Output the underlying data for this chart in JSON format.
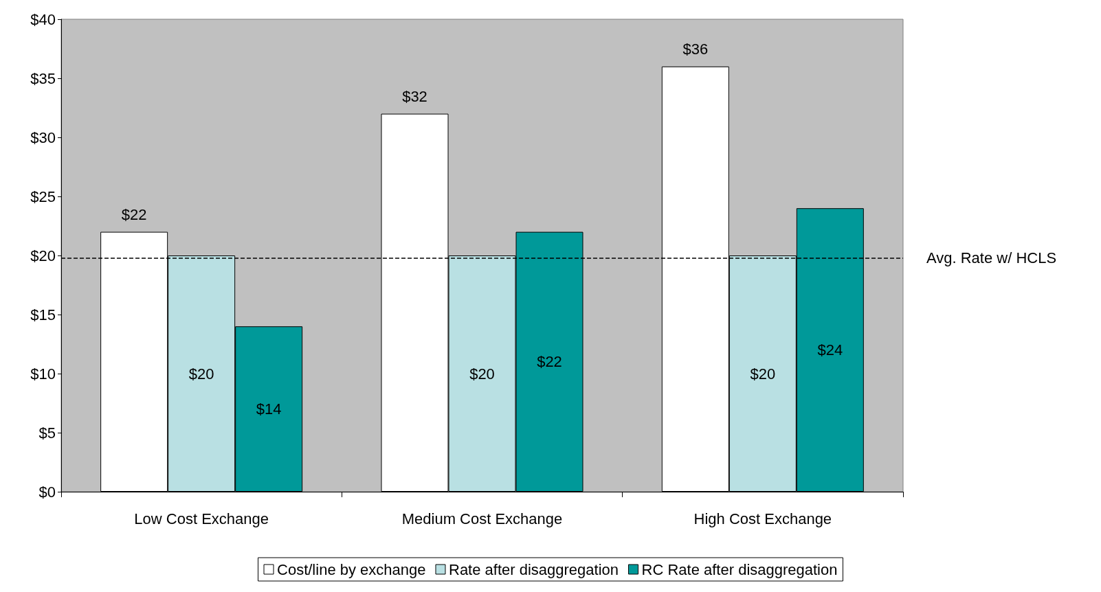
{
  "chart_data": {
    "type": "bar",
    "categories": [
      "Low Cost Exchange",
      "Medium Cost Exchange",
      "High Cost Exchange"
    ],
    "series": [
      {
        "name": "Cost/line by exchange",
        "color": "#ffffff",
        "values": [
          22,
          32,
          36
        ],
        "value_labels": [
          "$22",
          "$32",
          "$36"
        ]
      },
      {
        "name": "Rate after disaggregation",
        "color": "#b9e0e3",
        "values": [
          20,
          20,
          20
        ],
        "value_labels": [
          "$20",
          "$20",
          "$20"
        ]
      },
      {
        "name": "RC Rate after disaggregation",
        "color": "#009999",
        "values": [
          14,
          22,
          24
        ],
        "value_labels": [
          "$14",
          "$22",
          "$24"
        ]
      }
    ],
    "ylim": [
      0,
      40
    ],
    "yticks": [
      {
        "value": 0,
        "label": "$0"
      },
      {
        "value": 5,
        "label": "$5"
      },
      {
        "value": 10,
        "label": "$10"
      },
      {
        "value": 15,
        "label": "$15"
      },
      {
        "value": 20,
        "label": "$20"
      },
      {
        "value": 25,
        "label": "$25"
      },
      {
        "value": 30,
        "label": "$30"
      },
      {
        "value": 35,
        "label": "$35"
      },
      {
        "value": 40,
        "label": "$40"
      }
    ],
    "ref_lines": [
      {
        "axis": "y",
        "value": 19.8,
        "label": "Avg. Rate w/ HCLS",
        "color": "#000000",
        "line_style": "dashed"
      }
    ],
    "grid": false,
    "legend": "bottom"
  }
}
